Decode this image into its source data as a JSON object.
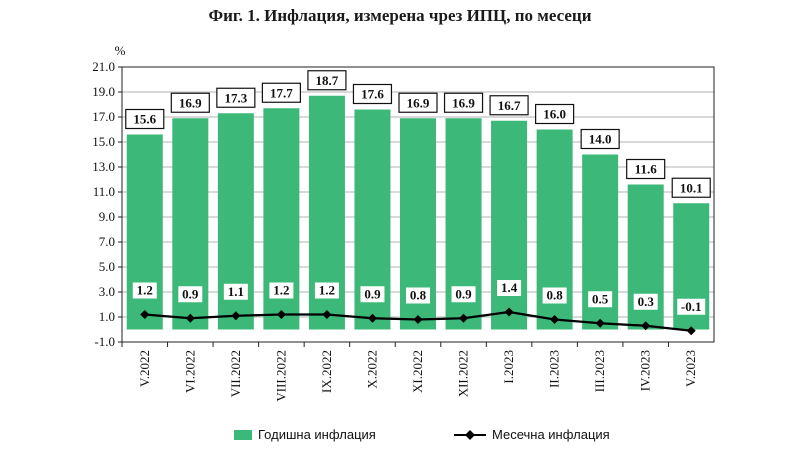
{
  "chart_data": {
    "type": "bar",
    "title": "Фиг. 1. Инфлация, измерена чрез ИПЦ, по месеци",
    "ylabel": "%",
    "xlabel": "",
    "ylim": [
      -1.0,
      21.0
    ],
    "yticks": [
      "-1.0",
      "1.0",
      "3.0",
      "5.0",
      "7.0",
      "9.0",
      "11.0",
      "13.0",
      "15.0",
      "17.0",
      "19.0",
      "21.0"
    ],
    "grid": true,
    "legend_position": "bottom",
    "categories": [
      "V.2022",
      "VI.2022",
      "VII.2022",
      "VIII.2022",
      "IX.2022",
      "X.2022",
      "XI.2022",
      "XII.2022",
      "I.2023",
      "II.2023",
      "III.2023",
      "IV.2023",
      "V.2023"
    ],
    "series": [
      {
        "name": "Годишна инфлация",
        "type": "bar",
        "color": "#3cb878",
        "values": [
          15.6,
          16.9,
          17.3,
          17.7,
          18.7,
          17.6,
          16.9,
          16.9,
          16.7,
          16.0,
          14.0,
          11.6,
          10.1
        ],
        "labels": [
          "15.6",
          "16.9",
          "17.3",
          "17.7",
          "18.7",
          "17.6",
          "16.9",
          "16.9",
          "16.7",
          "16.0",
          "14.0",
          "11.6",
          "10.1"
        ]
      },
      {
        "name": "Месечна инфлация",
        "type": "line",
        "color": "#000000",
        "values": [
          1.2,
          0.9,
          1.1,
          1.2,
          1.2,
          0.9,
          0.8,
          0.9,
          1.4,
          0.8,
          0.5,
          0.3,
          -0.1
        ],
        "labels": [
          "1.2",
          "0.9",
          "1.1",
          "1.2",
          "1.2",
          "0.9",
          "0.8",
          "0.9",
          "1.4",
          "0.8",
          "0.5",
          "0.3",
          "-0.1"
        ]
      }
    ]
  }
}
